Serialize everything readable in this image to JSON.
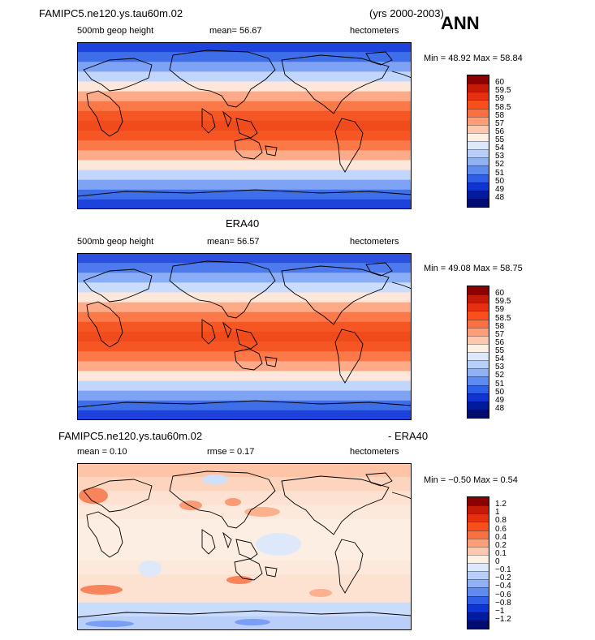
{
  "header": {
    "case_name": "FAMIPC5.ne120.ys.tau60m.02",
    "years": "(yrs 2000-2003)",
    "season": "ANN"
  },
  "panels": [
    {
      "title": "",
      "variable": "500mb geop height",
      "stat1": "mean=   56.67",
      "stat2": "",
      "units": "hectometers",
      "minmax": "Min =   48.92  Max =   58.84",
      "levels": [
        "60",
        "59.5",
        "59",
        "58.5",
        "58",
        "57",
        "56",
        "55",
        "54",
        "53",
        "52",
        "51",
        "50",
        "49",
        "48"
      ],
      "colors": [
        "#8b0000",
        "#c31a0a",
        "#e53012",
        "#f84f1c",
        "#fb7040",
        "#fd9e78",
        "#fec7ae",
        "#fff0e0",
        "#dde8fb",
        "#b8cffa",
        "#8fb1f6",
        "#5f8af0",
        "#2f5fe6",
        "#0f34d0",
        "#001c9c",
        "#000c70"
      ],
      "band_colors": [
        "#1e43dc",
        "#3f6ee9",
        "#7ea3f5",
        "#c2d6fb",
        "#fde7da",
        "#fdaa88",
        "#fb7848",
        "#f55624",
        "#f04b1c",
        "#f55624",
        "#fb7848",
        "#fdaa88",
        "#fde7da",
        "#c2d6fb",
        "#7ea3f5",
        "#3f6ee9",
        "#1e43dc"
      ]
    },
    {
      "title": "ERA40",
      "variable": "500mb geop height",
      "stat1": "mean=   56.57",
      "stat2": "",
      "units": "hectometers",
      "minmax": "Min =   49.08  Max =   58.75",
      "levels": [
        "60",
        "59.5",
        "59",
        "58.5",
        "58",
        "57",
        "56",
        "55",
        "54",
        "53",
        "52",
        "51",
        "50",
        "49",
        "48"
      ],
      "colors": [
        "#8b0000",
        "#c31a0a",
        "#e53012",
        "#f84f1c",
        "#fb7040",
        "#fd9e78",
        "#fec7ae",
        "#fff0e0",
        "#dde8fb",
        "#b8cffa",
        "#8fb1f6",
        "#5f8af0",
        "#2f5fe6",
        "#0f34d0",
        "#001c9c",
        "#000c70"
      ],
      "band_colors": [
        "#2a50e2",
        "#4d7bed",
        "#8aaef6",
        "#cadcfc",
        "#fde7da",
        "#fdaa88",
        "#fb7848",
        "#f55624",
        "#f04b1c",
        "#f55624",
        "#fb7848",
        "#fdaa88",
        "#fde7da",
        "#c2d6fb",
        "#7ea3f5",
        "#3f6ee9",
        "#1e43dc"
      ]
    },
    {
      "title_left": "FAMIPC5.ne120.ys.tau60m.02",
      "title_right": "- ERA40",
      "variable": "",
      "stat1": "mean =     0.10",
      "stat2": "rmse =     0.17",
      "units": "hectometers",
      "minmax": "Min =  −0.50  Max =     0.54",
      "levels": [
        "1.2",
        "1",
        "0.8",
        "0.6",
        "0.4",
        "0.2",
        "0.1",
        "0",
        "−0.1",
        "−0.2",
        "−0.4",
        "−0.6",
        "−0.8",
        "−1",
        "−1.2"
      ],
      "colors": [
        "#8b0000",
        "#c31a0a",
        "#e53012",
        "#f84f1c",
        "#fb7040",
        "#fd9e78",
        "#fec7ae",
        "#fff0e0",
        "#dde8fb",
        "#b8cffa",
        "#8fb1f6",
        "#5f8af0",
        "#2f5fe6",
        "#0f34d0",
        "#001c9c",
        "#000c70"
      ],
      "band_colors": [
        "#fdc4a8",
        "#fdd5bf",
        "#fde2d2",
        "#fde9dc",
        "#fdeee3",
        "#fdeee3",
        "#fdeee3",
        "#fde9dc",
        "#fde2d2",
        "#fde2d2",
        "#c9dcfb",
        "#b9cff9"
      ]
    }
  ]
}
